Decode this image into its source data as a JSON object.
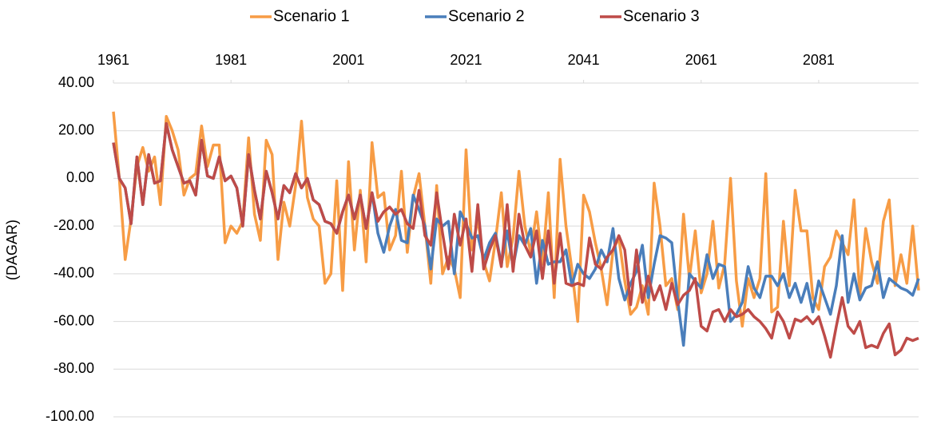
{
  "chart_data": {
    "type": "line",
    "ylabel": "(DAGAR)",
    "x": [
      1961,
      1962,
      1963,
      1964,
      1965,
      1966,
      1967,
      1968,
      1969,
      1970,
      1971,
      1972,
      1973,
      1974,
      1975,
      1976,
      1977,
      1978,
      1979,
      1980,
      1981,
      1982,
      1983,
      1984,
      1985,
      1986,
      1987,
      1988,
      1989,
      1990,
      1991,
      1992,
      1993,
      1994,
      1995,
      1996,
      1997,
      1998,
      1999,
      2000,
      2001,
      2002,
      2003,
      2004,
      2005,
      2006,
      2007,
      2008,
      2009,
      2010,
      2011,
      2012,
      2013,
      2014,
      2015,
      2016,
      2017,
      2018,
      2019,
      2020,
      2021,
      2022,
      2023,
      2024,
      2025,
      2026,
      2027,
      2028,
      2029,
      2030,
      2031,
      2032,
      2033,
      2034,
      2035,
      2036,
      2037,
      2038,
      2039,
      2040,
      2041,
      2042,
      2043,
      2044,
      2045,
      2046,
      2047,
      2048,
      2049,
      2050,
      2051,
      2052,
      2053,
      2054,
      2055,
      2056,
      2057,
      2058,
      2059,
      2060,
      2061,
      2062,
      2063,
      2064,
      2065,
      2066,
      2067,
      2068,
      2069,
      2070,
      2071,
      2072,
      2073,
      2074,
      2075,
      2076,
      2077,
      2078,
      2079,
      2080,
      2081,
      2082,
      2083,
      2084,
      2085,
      2086,
      2087,
      2088,
      2089,
      2090,
      2091,
      2092,
      2093,
      2094,
      2095,
      2096,
      2097,
      2098
    ],
    "xlim": [
      1961,
      2098
    ],
    "xticks": [
      1961,
      1981,
      2001,
      2021,
      2041,
      2061,
      2081
    ],
    "ylim": [
      -100,
      40
    ],
    "yticks": [
      {
        "value": -100,
        "label": "-100.00"
      },
      {
        "value": -80,
        "label": "-80.00"
      },
      {
        "value": -60,
        "label": "-60.00"
      },
      {
        "value": -40,
        "label": "-40.00"
      },
      {
        "value": -20,
        "label": "-20.00"
      },
      {
        "value": 0,
        "label": "0.00"
      },
      {
        "value": 20,
        "label": "20.00"
      },
      {
        "value": 40,
        "label": "40.00"
      }
    ],
    "grid": true,
    "legend": "top",
    "series": [
      {
        "name": "Scenario 1",
        "color": "#f79c45",
        "values": [
          28,
          0,
          -34,
          -17,
          5,
          13,
          3,
          9,
          -11,
          26,
          20,
          12,
          -7,
          0,
          2,
          22,
          5,
          14,
          14,
          -27,
          -20,
          -23,
          -18,
          17,
          -15,
          -26,
          16,
          10,
          -34,
          -10,
          -20,
          -3,
          24,
          -8,
          -17,
          -20,
          -44,
          -40,
          -1,
          -47,
          7,
          -30,
          -5,
          -35,
          15,
          -8,
          -6,
          -30,
          -24,
          3,
          -31,
          -8,
          2,
          -20,
          -44,
          -3,
          -40,
          -33,
          -38,
          -50,
          12,
          -30,
          -17,
          -35,
          -43,
          -26,
          -6,
          -37,
          -25,
          3,
          -20,
          -31,
          -14,
          -36,
          -6,
          -50,
          8,
          -20,
          -38,
          -60,
          -7,
          -14,
          -27,
          -38,
          -53,
          -30,
          -25,
          -43,
          -57,
          -54,
          -45,
          -57,
          -2,
          -20,
          -45,
          -42,
          -55,
          -15,
          -42,
          -22,
          -48,
          -40,
          -18,
          -46,
          -36,
          0,
          -43,
          -62,
          -42,
          -50,
          -42,
          2,
          -56,
          -54,
          -18,
          -45,
          -5,
          -22,
          -22,
          -50,
          -55,
          -37,
          -33,
          -22,
          -27,
          -32,
          -9,
          -49,
          -21,
          -35,
          -44,
          -18,
          -9,
          -45,
          -32,
          -44,
          -20,
          -47
        ]
      },
      {
        "name": "Scenario 2",
        "color": "#4a7ebb",
        "values": [
          15,
          0,
          -4,
          -19,
          9,
          -11,
          10,
          -2,
          -1,
          23,
          12,
          5,
          -2,
          -1,
          -7,
          16,
          1,
          0,
          9,
          -1,
          1,
          -4,
          -20,
          10,
          -5,
          -17,
          3,
          -6,
          -17,
          -3,
          -6,
          2,
          -4,
          0,
          -9,
          -11,
          -18,
          -19,
          -23,
          -14,
          -7,
          -17,
          -7,
          -21,
          -6,
          -23,
          -31,
          -20,
          -13,
          -26,
          -27,
          -7,
          -13,
          -20,
          -38,
          -17,
          -20,
          -18,
          -40,
          -14,
          -19,
          -25,
          -24,
          -34,
          -27,
          -23,
          -36,
          -22,
          -37,
          -24,
          -28,
          -21,
          -44,
          -26,
          -36,
          -35,
          -35,
          -30,
          -45,
          -36,
          -40,
          -42,
          -38,
          -30,
          -35,
          -21,
          -42,
          -51,
          -44,
          -39,
          -28,
          -50,
          -36,
          -24,
          -25,
          -27,
          -51,
          -70,
          -40,
          -43,
          -46,
          -32,
          -42,
          -36,
          -37,
          -60,
          -57,
          -52,
          -37,
          -46,
          -50,
          -41,
          -41,
          -45,
          -40,
          -50,
          -44,
          -52,
          -44,
          -56,
          -43,
          -50,
          -57,
          -45,
          -24,
          -52,
          -40,
          -51,
          -46,
          -45,
          -35,
          -50,
          -42,
          -44,
          -46,
          -47,
          -49,
          -42
        ]
      },
      {
        "name": "Scenario 3",
        "color": "#be4b48",
        "values": [
          15,
          0,
          -4,
          -19,
          9,
          -11,
          10,
          -2,
          -1,
          23,
          12,
          5,
          -2,
          -1,
          -7,
          16,
          1,
          0,
          9,
          -1,
          1,
          -4,
          -20,
          10,
          -5,
          -17,
          3,
          -6,
          -17,
          -3,
          -6,
          2,
          -4,
          0,
          -9,
          -11,
          -18,
          -19,
          -23,
          -14,
          -7,
          -17,
          -7,
          -21,
          -6,
          -18,
          -14,
          -12,
          -15,
          -13,
          -19,
          -21,
          -5,
          -24,
          -28,
          -6,
          -23,
          -38,
          -15,
          -28,
          -17,
          -39,
          -11,
          -38,
          -30,
          -24,
          -37,
          -11,
          -39,
          -15,
          -28,
          -33,
          -22,
          -42,
          -22,
          -44,
          -23,
          -44,
          -45,
          -44,
          -45,
          -25,
          -36,
          -38,
          -33,
          -30,
          -24,
          -30,
          -53,
          -30,
          -52,
          -41,
          -51,
          -45,
          -55,
          -44,
          -53,
          -49,
          -47,
          -42,
          -62,
          -64,
          -56,
          -55,
          -60,
          -55,
          -58,
          -57,
          -55,
          -58,
          -60,
          -63,
          -67,
          -56,
          -60,
          -67,
          -59,
          -60,
          -58,
          -61,
          -58,
          -66,
          -75,
          -62,
          -50,
          -62,
          -65,
          -60,
          -71,
          -70,
          -71,
          -65,
          -61,
          -74,
          -72,
          -67,
          -68,
          -67
        ]
      }
    ]
  }
}
